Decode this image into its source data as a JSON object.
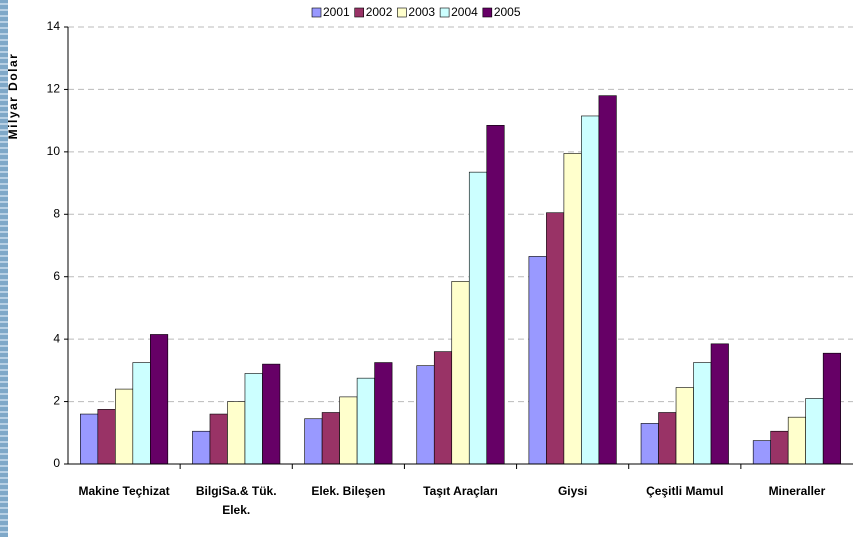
{
  "chart_data": {
    "type": "bar",
    "y_label": "Milyar Dolar",
    "categories": [
      "Makine Teçhizat",
      "BilgiSa.& Tük. Elek.",
      "Elek. Bileşen",
      "Taşıt Araçları",
      "Giysi",
      "Çeşitli Mamul",
      "Mineraller"
    ],
    "series": [
      {
        "name": "2001",
        "color": "#9999ff",
        "values": [
          1.6,
          1.05,
          1.45,
          3.15,
          6.65,
          1.3,
          0.75
        ]
      },
      {
        "name": "2002",
        "color": "#993366",
        "values": [
          1.75,
          1.6,
          1.65,
          3.6,
          8.05,
          1.65,
          1.05
        ]
      },
      {
        "name": "2003",
        "color": "#ffffcc",
        "values": [
          2.4,
          2.0,
          2.15,
          5.85,
          9.95,
          2.45,
          1.5
        ]
      },
      {
        "name": "2004",
        "color": "#ccffff",
        "values": [
          3.25,
          2.9,
          2.75,
          9.35,
          11.15,
          3.25,
          2.1
        ]
      },
      {
        "name": "2005",
        "color": "#660066",
        "values": [
          4.15,
          3.2,
          3.25,
          10.85,
          11.8,
          3.85,
          3.55
        ]
      }
    ],
    "ylim": [
      0,
      14
    ],
    "yticks": [
      0,
      2,
      4,
      6,
      8,
      10,
      12,
      14
    ],
    "grid": true,
    "legend": "top"
  }
}
